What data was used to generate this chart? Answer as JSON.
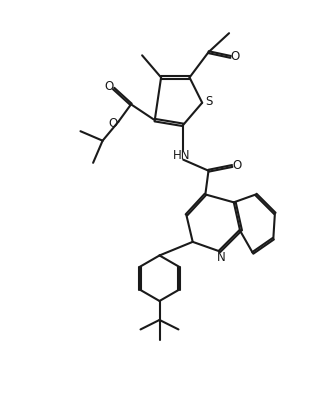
{
  "bg_color": "#ffffff",
  "line_color": "#1a1a1a",
  "line_width": 1.5,
  "figsize": [
    3.19,
    4.11
  ],
  "dpi": 100,
  "xlim": [
    0,
    10
  ],
  "ylim": [
    0,
    13
  ]
}
